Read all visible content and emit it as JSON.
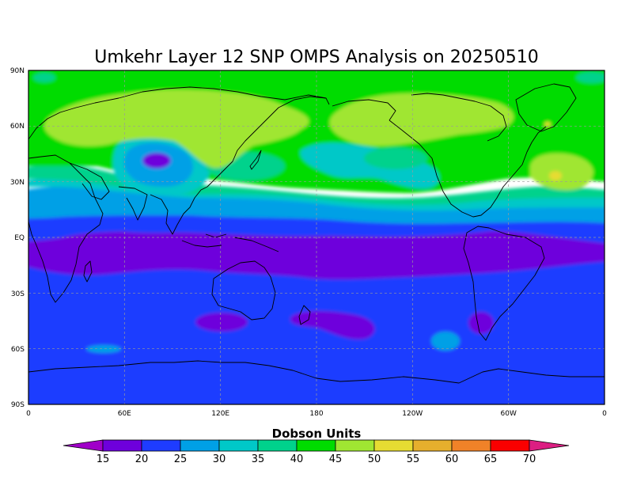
{
  "title": "Umkehr Layer 12 SNP OMPS Analysis on 20250510",
  "colorbar_title": "Dobson Units",
  "lat_labels": [
    "90N",
    "60N",
    "30N",
    "EQ",
    "30S",
    "60S",
    "90S"
  ],
  "lon_labels": [
    "0",
    "60E",
    "120E",
    "180",
    "120W",
    "60W",
    "0"
  ],
  "colorbar_labels": [
    "15",
    "20",
    "25",
    "30",
    "35",
    "40",
    "45",
    "50",
    "55",
    "60",
    "65",
    "70"
  ],
  "colors": {
    "lt15": "#a000c8",
    "15_20": "#6e00dc",
    "20_25": "#1e3cff",
    "25_30": "#00a0e6",
    "30_35": "#00c8c8",
    "35_40": "#00d28c",
    "40_45": "#00dc00",
    "45_50": "#a0e632",
    "50_55": "#e6dc32",
    "55_60": "#e6af2d",
    "60_65": "#f08228",
    "65_70": "#fa0000",
    "gt70": "#dc1e82"
  },
  "map_data": {
    "type": "filled-contour-map",
    "projection": "cylindrical equidistant",
    "lat_range": [
      -90,
      90
    ],
    "lon_range": [
      0,
      360
    ],
    "units": "Dobson Units",
    "levels": [
      15,
      20,
      25,
      30,
      35,
      40,
      45,
      50,
      55,
      60,
      65,
      70
    ],
    "zonal_pattern": [
      {
        "lat_range": [
          60,
          90
        ],
        "typical_range": "40-50"
      },
      {
        "lat_range": [
          30,
          60
        ],
        "typical_range": "30-50"
      },
      {
        "lat_range": [
          10,
          30
        ],
        "typical_range": "25-35"
      },
      {
        "lat_range": [
          -20,
          5
        ],
        "typical_range": "15-20"
      },
      {
        "lat_range": [
          -90,
          -20
        ],
        "typical_range": "20-25"
      }
    ],
    "features": [
      {
        "lon": 83,
        "lat": 33,
        "range": "15-20",
        "description": "low over Tibetan plateau"
      },
      {
        "lon": 330,
        "lat": 27,
        "range": "50-55",
        "description": "high over North Atlantic"
      },
      {
        "lon": 110,
        "lat": 68,
        "range": "45-50",
        "description": "Siberian high"
      },
      {
        "lon": 250,
        "lat": 60,
        "range": "45-50",
        "description": "North American high"
      },
      {
        "lon": 200,
        "lat": -42,
        "range": "15-20",
        "description": "South Pacific low"
      },
      {
        "lon": 255,
        "lat": -53,
        "range": "25-30",
        "description": "Southeast Pacific patch"
      }
    ]
  }
}
